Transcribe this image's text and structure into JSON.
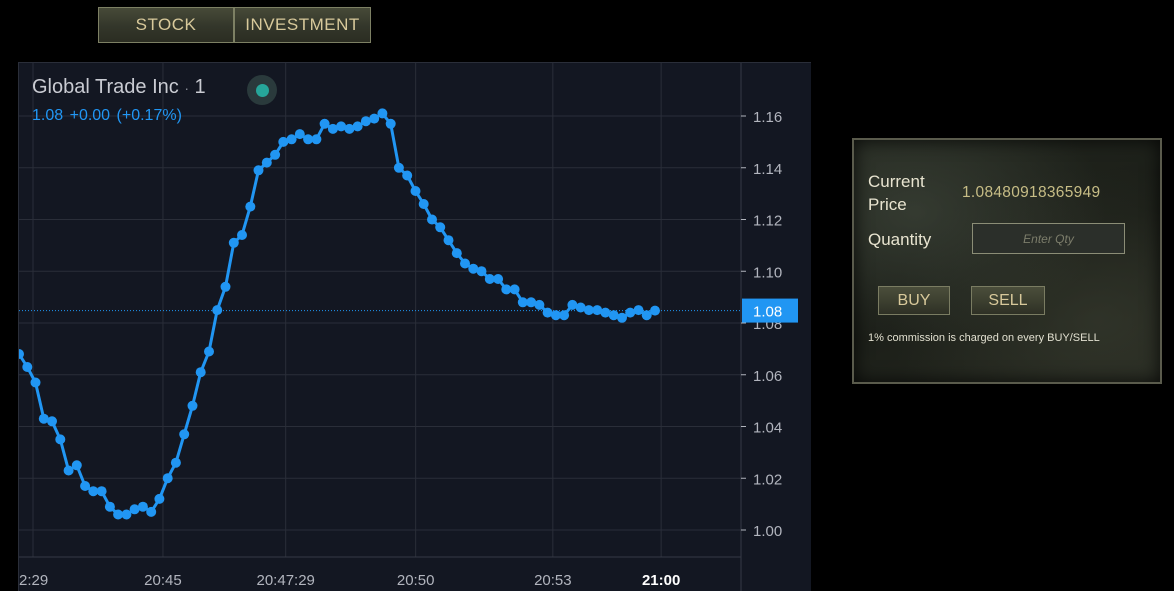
{
  "tabs": [
    {
      "label": "STOCK"
    },
    {
      "label": "INVESTMENT"
    }
  ],
  "legend": {
    "symbol": "Global Trade Inc",
    "separator": "·",
    "interval": "1",
    "price": "1.08",
    "change": "+0.00",
    "change_pct": "(+0.17%)",
    "status_color": "#26a69a"
  },
  "colors": {
    "line": "#2196f3",
    "background": "#131722",
    "grid": "#2a2e39"
  },
  "chart_data": {
    "type": "line",
    "x_tick_labels": [
      "2:29",
      "20:45",
      "20:47:29",
      "20:50",
      "20:53",
      "21:00"
    ],
    "x_tick_fraction": [
      0.0,
      0.18,
      0.35,
      0.53,
      0.72,
      0.87
    ],
    "ylim": [
      0.99,
      1.175
    ],
    "y_ticks": [
      1.0,
      1.02,
      1.04,
      1.06,
      1.08,
      1.1,
      1.12,
      1.14,
      1.16
    ],
    "y_tick_labels": [
      "1.00",
      "1.02",
      "1.04",
      "1.06",
      "1.08",
      "1.10",
      "1.12",
      "1.14",
      "1.16"
    ],
    "last_price_label": "1.08",
    "last_value": 1.0848,
    "grid": true,
    "series": [
      {
        "values": [
          1.068,
          1.063,
          1.057,
          1.043,
          1.042,
          1.035,
          1.023,
          1.025,
          1.017,
          1.015,
          1.015,
          1.009,
          1.006,
          1.006,
          1.008,
          1.009,
          1.007,
          1.012,
          1.02,
          1.026,
          1.037,
          1.048,
          1.061,
          1.069,
          1.085,
          1.094,
          1.111,
          1.114,
          1.125,
          1.139,
          1.142,
          1.145,
          1.15,
          1.151,
          1.153,
          1.151,
          1.151,
          1.157,
          1.155,
          1.156,
          1.155,
          1.156,
          1.158,
          1.159,
          1.161,
          1.157,
          1.14,
          1.137,
          1.131,
          1.126,
          1.12,
          1.117,
          1.112,
          1.107,
          1.103,
          1.101,
          1.1,
          1.097,
          1.097,
          1.093,
          1.093,
          1.088,
          1.088,
          1.087,
          1.084,
          1.083,
          1.083,
          1.087,
          1.086,
          1.085,
          1.085,
          1.084,
          1.083,
          1.082,
          1.084,
          1.085,
          1.083,
          1.0848
        ]
      }
    ]
  },
  "trade": {
    "current_price_label": [
      "Current",
      "Price"
    ],
    "current_price_value": "1.08480918365949",
    "quantity_label": "Quantity",
    "qty_placeholder": "Enter Qty",
    "buy_label": "BUY",
    "sell_label": "SELL",
    "note": "1% commission is charged on every BUY/SELL"
  }
}
